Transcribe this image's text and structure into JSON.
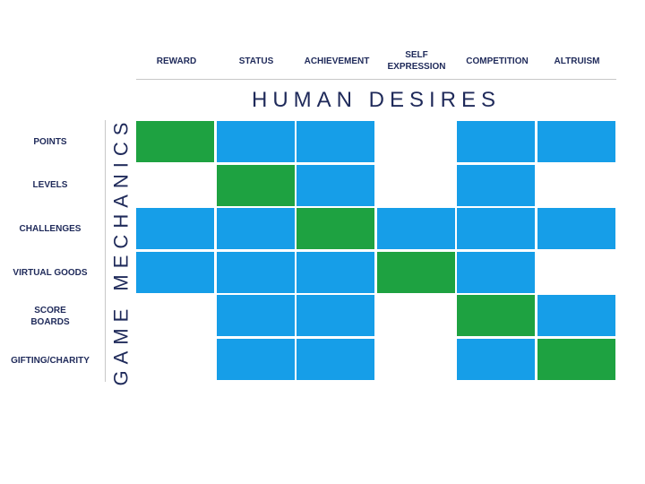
{
  "title": "HUMAN DESIRES",
  "side_title": "GAME MECHANICS",
  "columns": [
    "REWARD",
    "STATUS",
    "ACHIEVEMENT",
    "SELF\nEXPRESSION",
    "COMPETITION",
    "ALTRUISM"
  ],
  "rows": [
    "POINTS",
    "LEVELS",
    "CHALLENGES",
    "VIRTUAL GOODS",
    "SCORE\nBOARDS",
    "GIFTING/CHARITY"
  ],
  "colors": {
    "green": "#1ea241",
    "blue": "#169ee8",
    "empty": "#ffffff",
    "text": "#1f2a5a"
  },
  "matrix": [
    [
      "green",
      "blue",
      "blue",
      "empty",
      "blue",
      "blue"
    ],
    [
      "empty",
      "green",
      "blue",
      "empty",
      "blue",
      "empty"
    ],
    [
      "blue",
      "blue",
      "green",
      "blue",
      "blue",
      "blue"
    ],
    [
      "blue",
      "blue",
      "blue",
      "green",
      "blue",
      "empty"
    ],
    [
      "empty",
      "blue",
      "blue",
      "empty",
      "green",
      "blue"
    ],
    [
      "empty",
      "blue",
      "blue",
      "empty",
      "blue",
      "green"
    ]
  ]
}
